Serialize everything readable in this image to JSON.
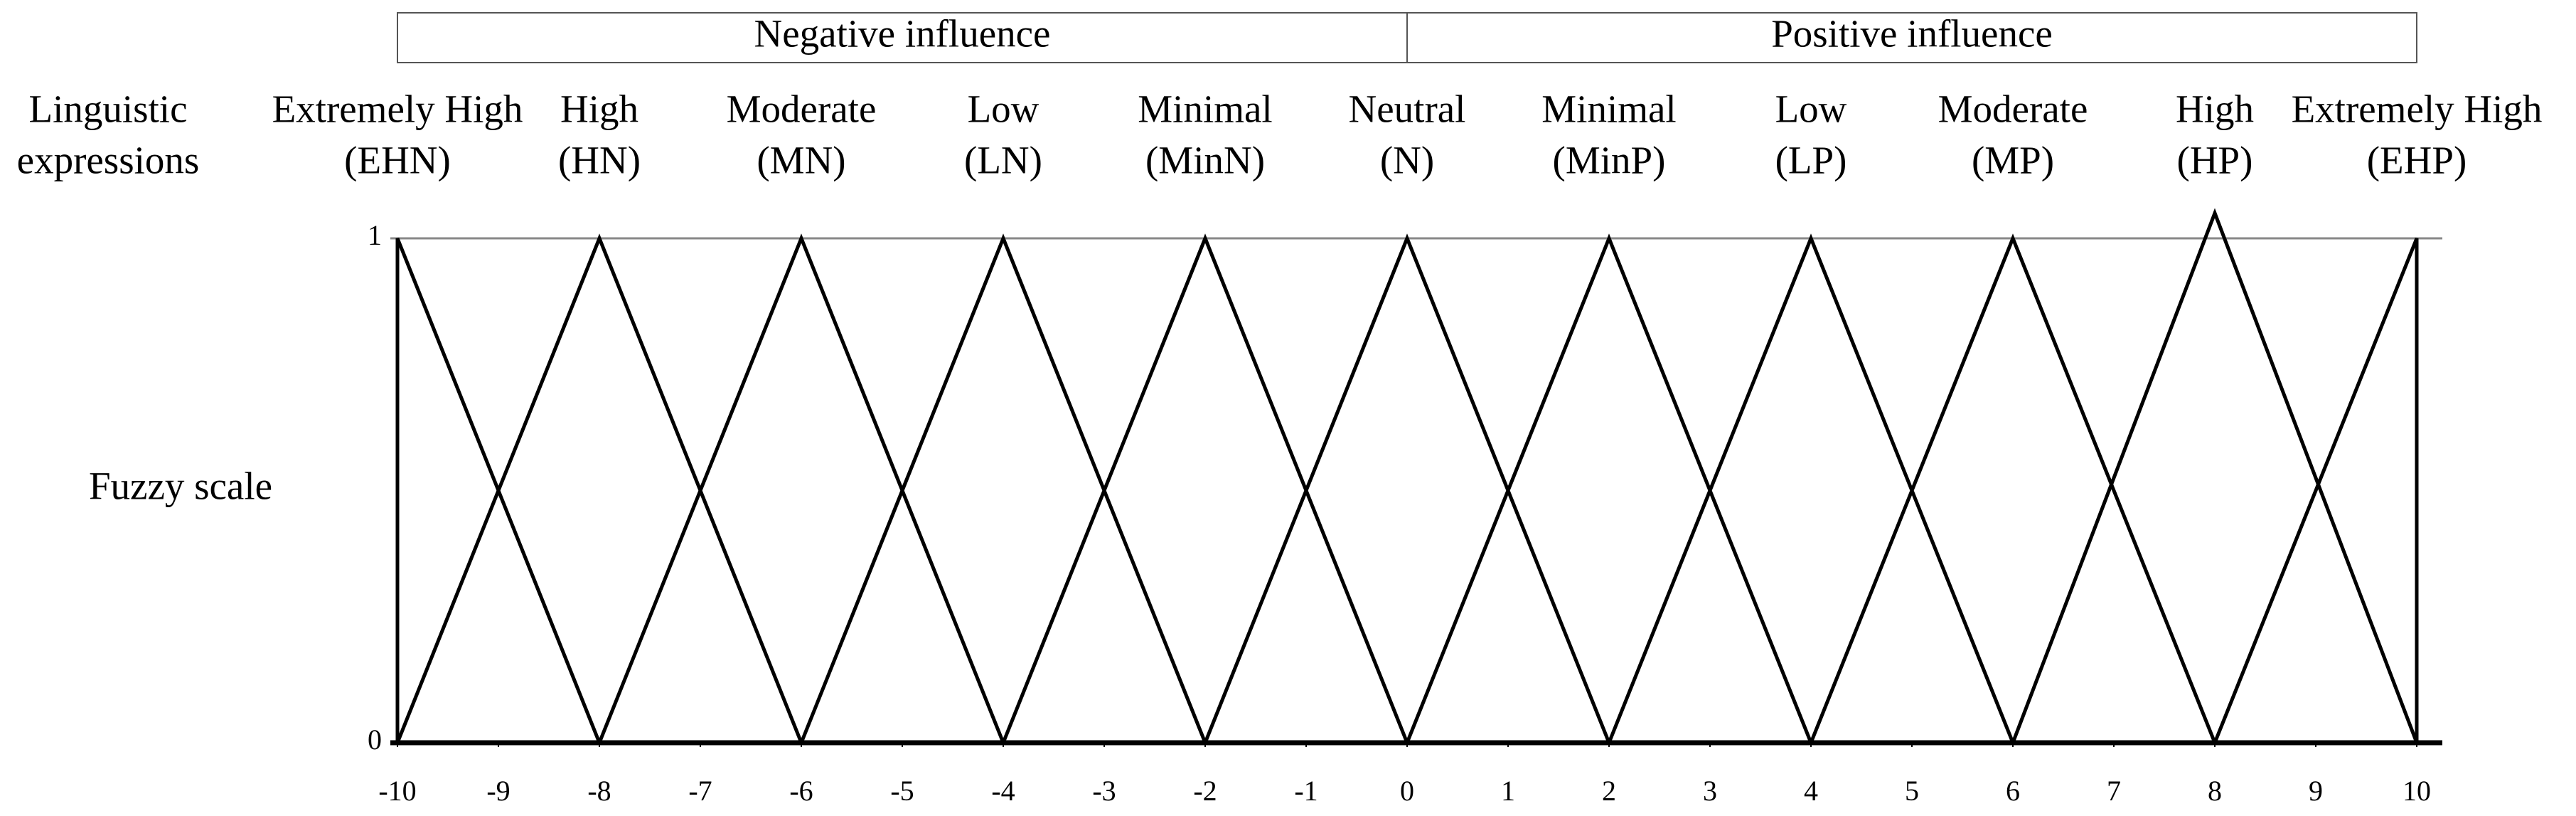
{
  "chart_data": {
    "type": "line",
    "row_labels": {
      "expressions": [
        "Linguistic",
        "expressions"
      ],
      "scale": "Fuzzy scale"
    },
    "groups": [
      {
        "label": "Negative influence",
        "range": [
          -10,
          0
        ]
      },
      {
        "label": "Positive influence",
        "range": [
          0,
          10
        ]
      }
    ],
    "series": [
      {
        "name": "Extremely High",
        "abbr": "(EHN)",
        "peak": -10,
        "x": [
          -10,
          -10,
          -8
        ],
        "values": [
          0,
          1,
          0
        ]
      },
      {
        "name": "High",
        "abbr": "(HN)",
        "peak": -8,
        "x": [
          -10,
          -8,
          -6
        ],
        "values": [
          0,
          1,
          0
        ]
      },
      {
        "name": "Moderate",
        "abbr": "(MN)",
        "peak": -6,
        "x": [
          -8,
          -6,
          -4
        ],
        "values": [
          0,
          1,
          0
        ]
      },
      {
        "name": "Low",
        "abbr": "(LN)",
        "peak": -4,
        "x": [
          -6,
          -4,
          -2
        ],
        "values": [
          0,
          1,
          0
        ]
      },
      {
        "name": "Minimal",
        "abbr": "(MinN)",
        "peak": -2,
        "x": [
          -4,
          -2,
          0
        ],
        "values": [
          0,
          1,
          0
        ]
      },
      {
        "name": "Neutral",
        "abbr": "(N)",
        "peak": 0,
        "x": [
          -2,
          0,
          2
        ],
        "values": [
          0,
          1,
          0
        ]
      },
      {
        "name": "Minimal",
        "abbr": "(MinP)",
        "peak": 2,
        "x": [
          0,
          2,
          4
        ],
        "values": [
          0,
          1,
          0
        ]
      },
      {
        "name": "Low",
        "abbr": "(LP)",
        "peak": 4,
        "x": [
          2,
          4,
          6
        ],
        "values": [
          0,
          1,
          0
        ]
      },
      {
        "name": "Moderate",
        "abbr": "(MP)",
        "peak": 6,
        "x": [
          4,
          6,
          8
        ],
        "values": [
          0,
          1,
          0
        ]
      },
      {
        "name": "High",
        "abbr": "(HP)",
        "peak": 8,
        "x": [
          6,
          8,
          10
        ],
        "values": [
          0,
          1.05,
          0
        ]
      },
      {
        "name": "Extremely High",
        "abbr": "(EHP)",
        "peak": 10,
        "x": [
          8,
          10,
          10
        ],
        "values": [
          0,
          1,
          0
        ]
      }
    ],
    "color": "#000000",
    "xlim": [
      -10,
      10
    ],
    "xticks": [
      -10,
      -9,
      -8,
      -7,
      -6,
      -5,
      -4,
      -3,
      -2,
      -1,
      0,
      1,
      2,
      3,
      4,
      5,
      6,
      7,
      8,
      9,
      10
    ],
    "ylim": [
      0,
      1
    ],
    "yticks": [
      0,
      1
    ]
  }
}
